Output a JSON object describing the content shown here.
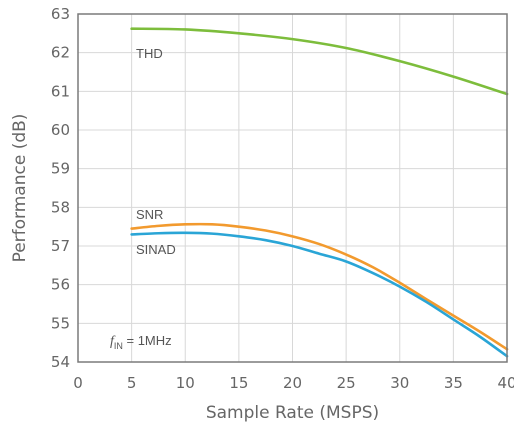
{
  "chart_data": {
    "type": "line",
    "xlabel": "Sample Rate (MSPS)",
    "ylabel": "Performance (dB)",
    "xlim": [
      0,
      40
    ],
    "ylim": [
      54,
      63
    ],
    "xticks": [
      0,
      5,
      10,
      15,
      20,
      25,
      30,
      35,
      40
    ],
    "yticks": [
      54,
      55,
      56,
      57,
      58,
      59,
      60,
      61,
      62,
      63
    ],
    "grid": true,
    "annotation": {
      "prefix": "f",
      "subscript": "IN",
      "suffix": " = 1MHz"
    },
    "series": [
      {
        "name": "THD",
        "color": "#7dbd3c",
        "x": [
          5,
          10,
          15,
          20,
          25,
          30,
          35,
          40
        ],
        "y": [
          62.62,
          62.6,
          62.5,
          62.35,
          62.12,
          61.78,
          61.38,
          60.93
        ]
      },
      {
        "name": "SNR",
        "color": "#f29a2e",
        "x": [
          5,
          7.5,
          10,
          12.5,
          15,
          17.5,
          20,
          22.5,
          25,
          27.5,
          30,
          32.5,
          35,
          37.5,
          40
        ],
        "y": [
          57.45,
          57.52,
          57.56,
          57.56,
          57.5,
          57.4,
          57.25,
          57.05,
          56.78,
          56.45,
          56.05,
          55.62,
          55.2,
          54.78,
          54.33
        ]
      },
      {
        "name": "SINAD",
        "color": "#2aa5d6",
        "x": [
          5,
          7.5,
          10,
          12.5,
          15,
          17.5,
          20,
          22.5,
          25,
          27.5,
          30,
          32.5,
          35,
          37.5,
          40
        ],
        "y": [
          57.3,
          57.33,
          57.34,
          57.32,
          57.25,
          57.15,
          57.0,
          56.8,
          56.6,
          56.3,
          55.95,
          55.55,
          55.1,
          54.65,
          54.15
        ]
      }
    ]
  }
}
